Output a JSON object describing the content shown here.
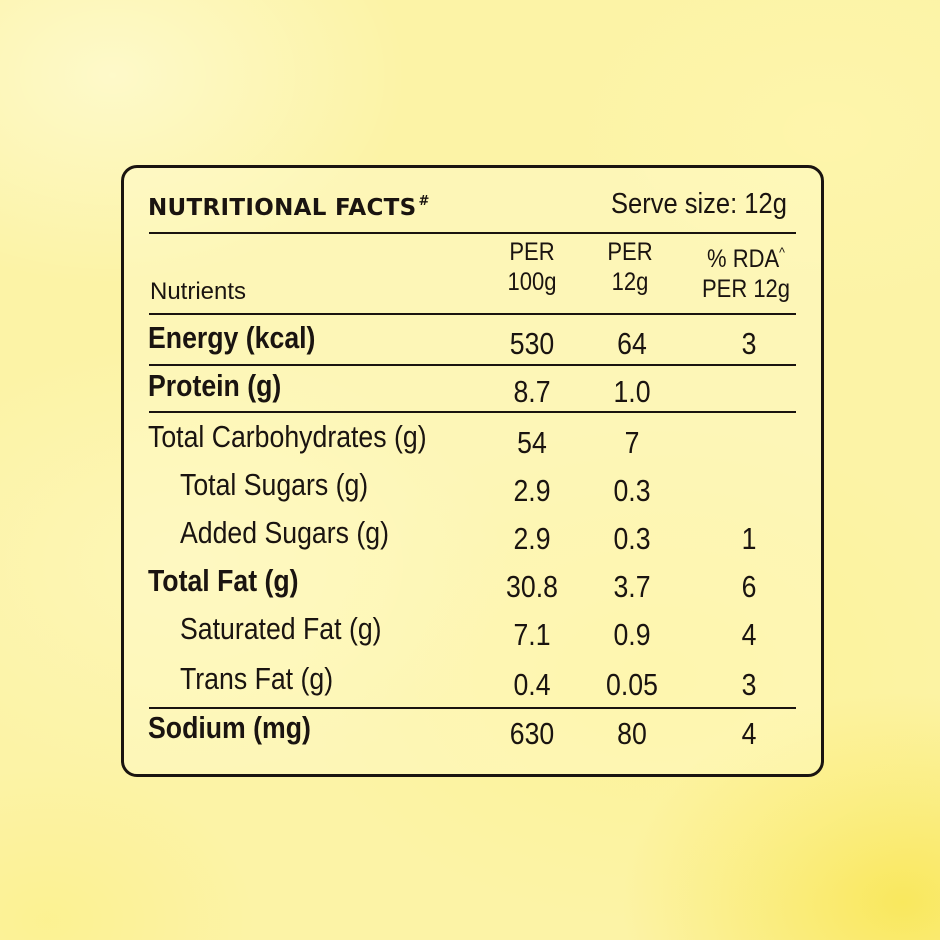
{
  "facts": {
    "title": "NUTRITIONAL FACTS",
    "title_mark": "#",
    "serve_size": "Serve size: 12g",
    "columns": {
      "nutrients": "Nutrients",
      "per100": [
        "PER",
        "100g"
      ],
      "per12": [
        "PER",
        "12g"
      ],
      "rda": [
        "% RDA",
        "^",
        "PER 12g"
      ]
    },
    "rows": [
      {
        "name": "Energy (kcal)",
        "per100": "530",
        "per12": "64",
        "rda": "3"
      },
      {
        "name": "Protein (g)",
        "per100": "8.7",
        "per12": "1.0",
        "rda": ""
      },
      {
        "name": "Total Carbohydrates (g)",
        "per100": "54",
        "per12": "7",
        "rda": ""
      },
      {
        "name": "Total Sugars (g)",
        "per100": "2.9",
        "per12": "0.3",
        "rda": ""
      },
      {
        "name": "Added Sugars (g)",
        "per100": "2.9",
        "per12": "0.3",
        "rda": "1"
      },
      {
        "name": "Total Fat (g)",
        "per100": "30.8",
        "per12": "3.7",
        "rda": "6"
      },
      {
        "name": "Saturated Fat (g)",
        "per100": "7.1",
        "per12": "0.9",
        "rda": "4"
      },
      {
        "name": "Trans Fat (g)",
        "per100": "0.4",
        "per12": "0.05",
        "rda": "3"
      },
      {
        "name": "Sodium (mg)",
        "per100": "630",
        "per12": "80",
        "rda": "4"
      }
    ]
  }
}
